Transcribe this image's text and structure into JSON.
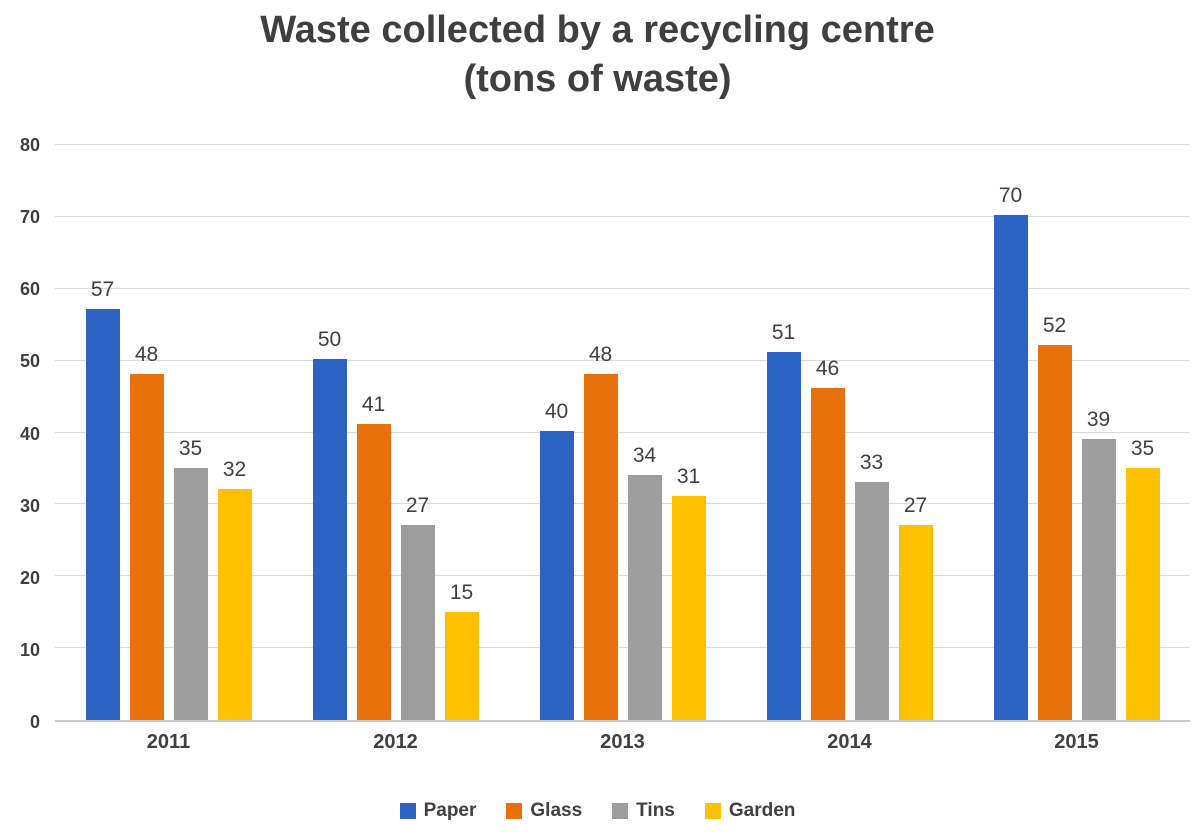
{
  "chart_data": {
    "type": "bar",
    "title": "Waste collected by a recycling centre",
    "subtitle": "(tons of waste)",
    "categories": [
      "2011",
      "2012",
      "2013",
      "2014",
      "2015"
    ],
    "series": [
      {
        "name": "Paper",
        "color": "#2b62c4",
        "values": [
          57,
          50,
          40,
          51,
          70
        ]
      },
      {
        "name": "Glass",
        "color": "#e8710c",
        "values": [
          48,
          41,
          48,
          46,
          52
        ]
      },
      {
        "name": "Tins",
        "color": "#9d9d9d",
        "values": [
          35,
          27,
          34,
          33,
          39
        ]
      },
      {
        "name": "Garden",
        "color": "#ffc000",
        "values": [
          32,
          15,
          31,
          27,
          35
        ]
      }
    ],
    "ylim": [
      0,
      80
    ],
    "yticks": [
      0,
      10,
      20,
      30,
      40,
      50,
      60,
      70,
      80
    ],
    "grid": true,
    "legend_position": "bottom",
    "show_value_labels": true
  },
  "style": {
    "title_color": "#3f3f3f",
    "axis_label_color": "#404040",
    "value_label_color": "#404040",
    "gridline_color": "#dadada",
    "axis_line_color": "#c9c9c9",
    "background_color": "#ffffff"
  }
}
